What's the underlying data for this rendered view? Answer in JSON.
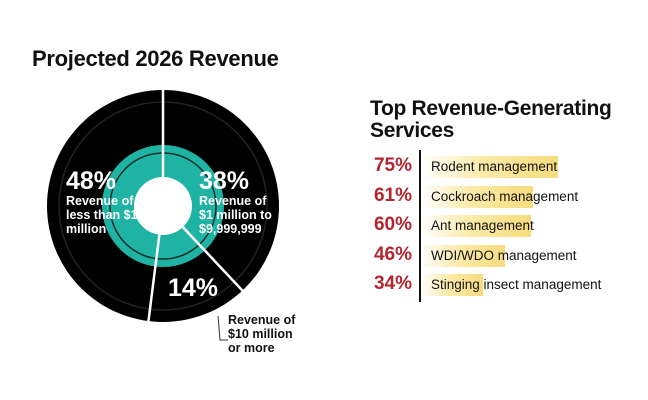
{
  "chart_data": [
    {
      "type": "pie",
      "title": "Projected 2026 Revenue",
      "slices": [
        {
          "value": 38,
          "label": "38%",
          "description": "Revenue of $1 million to $9,999,999"
        },
        {
          "value": 14,
          "label": "14%",
          "description": "Revenue of $10 million or more"
        },
        {
          "value": 48,
          "label": "48%",
          "description": "Revenue of less than $1 million"
        }
      ],
      "colors": {
        "ring": "#000000",
        "inner": "#1fb3a3",
        "divider": "#ffffff"
      }
    },
    {
      "type": "bar",
      "title": "Top Revenue-Generating Services",
      "categories": [
        "Rodent management",
        "Cockroach management",
        "Ant management",
        "WDI/WDO management",
        "Stinging insect management"
      ],
      "values": [
        75,
        61,
        60,
        46,
        34
      ],
      "value_labels": [
        "75%",
        "61%",
        "60%",
        "46%",
        "34%"
      ],
      "colors": {
        "value_text": "#b3262d",
        "bar": "#f7dc7d"
      }
    }
  ]
}
